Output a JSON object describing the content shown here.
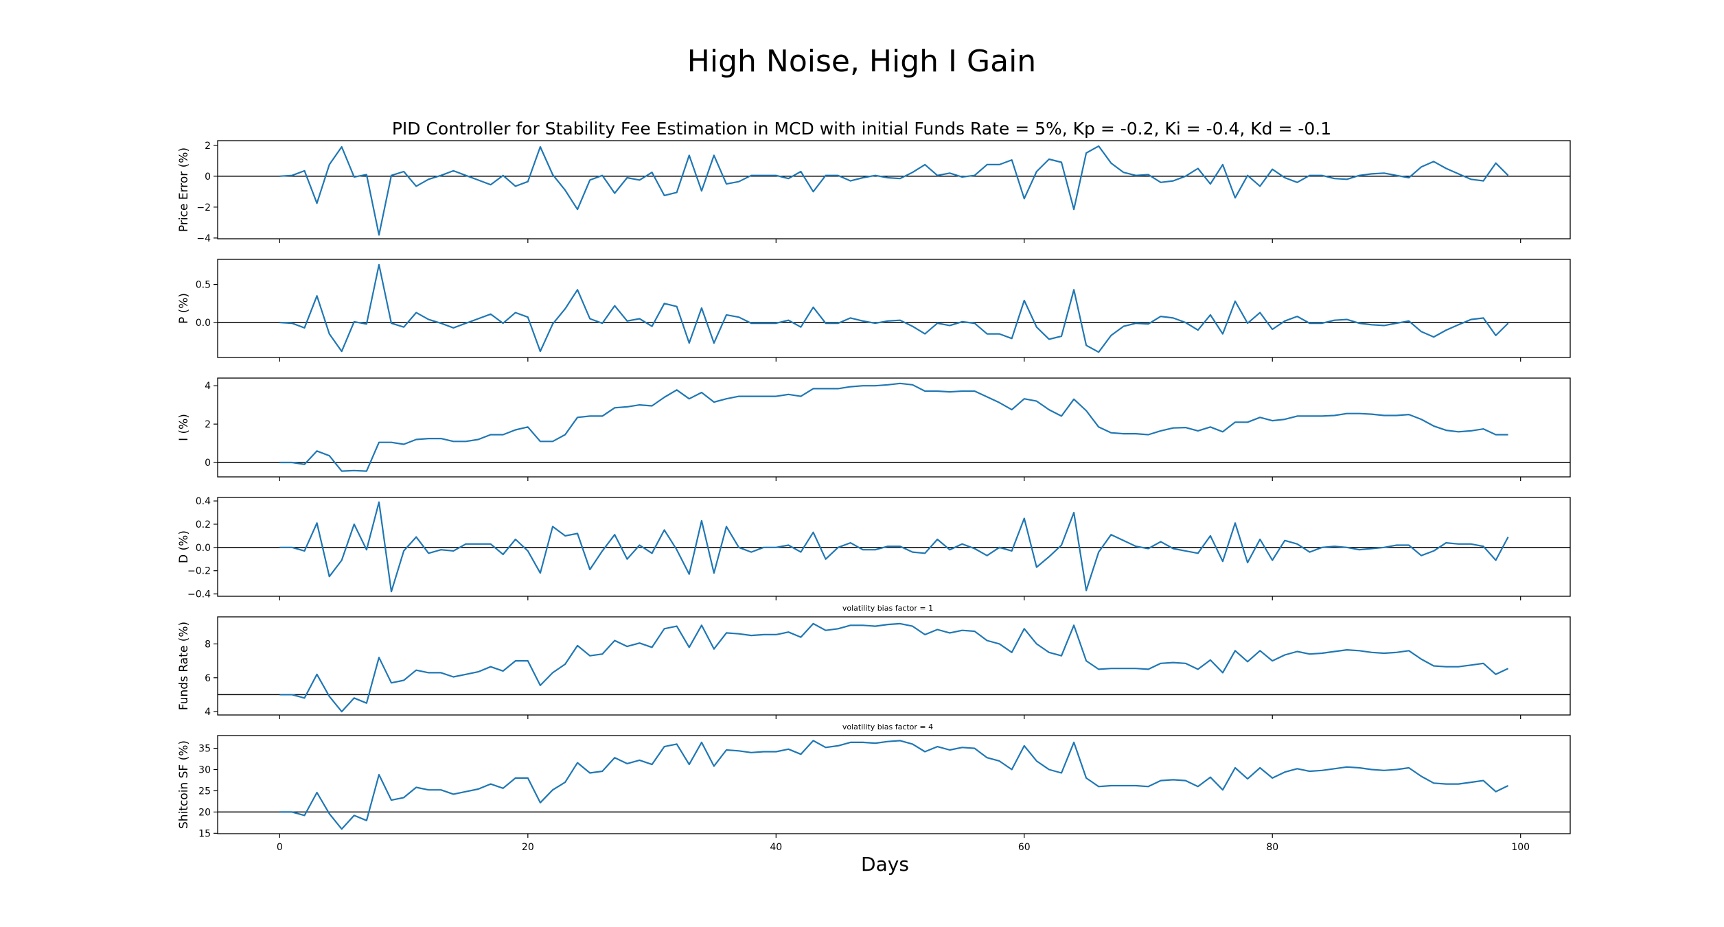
{
  "suptitle": "High Noise, High I Gain",
  "chart_data": {
    "type": "line",
    "title": "PID Controller for Stability Fee Estimation in MCD with initial Funds Rate = 5%, Kp = -0.2, Ki = -0.4, Kd = -0.1",
    "xlabel": "Days",
    "xlim": [
      -5,
      104
    ],
    "xticks": [
      0,
      20,
      40,
      60,
      80,
      100
    ],
    "x": [
      0,
      1,
      2,
      3,
      4,
      5,
      6,
      7,
      8,
      9,
      10,
      11,
      12,
      13,
      14,
      15,
      16,
      17,
      18,
      19,
      20,
      21,
      22,
      23,
      24,
      25,
      26,
      27,
      28,
      29,
      30,
      31,
      32,
      33,
      34,
      35,
      36,
      37,
      38,
      39,
      40,
      41,
      42,
      43,
      44,
      45,
      46,
      47,
      48,
      49,
      50,
      51,
      52,
      53,
      54,
      55,
      56,
      57,
      58,
      59,
      60,
      61,
      62,
      63,
      64,
      65,
      66,
      67,
      68,
      69,
      70,
      71,
      72,
      73,
      74,
      75,
      76,
      77,
      78,
      79,
      80,
      81,
      82,
      83,
      84,
      85,
      86,
      87,
      88,
      89,
      90,
      91,
      92,
      93,
      94,
      95,
      96,
      97,
      98,
      99
    ],
    "subplots": [
      {
        "ylabel": "Price Error (%)",
        "annotation": "",
        "ylim": [
          -4.05,
          2.3
        ],
        "yticks": [
          2,
          0,
          -2,
          -4
        ],
        "ref_y": 0,
        "values": [
          0,
          0.05,
          0.35,
          -1.75,
          0.75,
          1.9,
          -0.05,
          0.1,
          -3.8,
          0.05,
          0.3,
          -0.65,
          -0.2,
          0.05,
          0.35,
          0.05,
          -0.25,
          -0.55,
          0.05,
          -0.65,
          -0.35,
          1.9,
          0.1,
          -0.9,
          -2.15,
          -0.25,
          0.05,
          -1.1,
          -0.1,
          -0.25,
          0.25,
          -1.25,
          -1.05,
          1.35,
          -0.95,
          1.35,
          -0.5,
          -0.35,
          0.05,
          0.05,
          0.05,
          -0.15,
          0.3,
          -1.0,
          0.05,
          0.05,
          -0.3,
          -0.1,
          0.05,
          -0.1,
          -0.15,
          0.25,
          0.75,
          0.05,
          0.2,
          -0.05,
          0.05,
          0.75,
          0.75,
          1.05,
          -1.45,
          0.3,
          1.1,
          0.9,
          -2.15,
          1.5,
          1.95,
          0.85,
          0.25,
          0.05,
          0.1,
          -0.4,
          -0.3,
          0.0,
          0.5,
          -0.5,
          0.75,
          -1.4,
          0.05,
          -0.65,
          0.45,
          -0.1,
          -0.4,
          0.05,
          0.05,
          -0.15,
          -0.2,
          0.05,
          0.15,
          0.2,
          0.05,
          -0.1,
          0.6,
          0.95,
          0.5,
          0.15,
          -0.2,
          -0.3,
          0.85,
          0.05
        ]
      },
      {
        "ylabel": "P (%)",
        "annotation": "",
        "ylim": [
          -0.46,
          0.83
        ],
        "yticks": [
          0.5,
          0.0
        ],
        "ytick_labels": [
          "0.5",
          "0.0"
        ],
        "ref_y": 0,
        "values": [
          0,
          -0.01,
          -0.07,
          0.35,
          -0.15,
          -0.38,
          0.01,
          -0.02,
          0.76,
          -0.01,
          -0.06,
          0.13,
          0.04,
          -0.01,
          -0.07,
          -0.01,
          0.05,
          0.11,
          -0.01,
          0.13,
          0.07,
          -0.38,
          -0.02,
          0.18,
          0.43,
          0.05,
          -0.01,
          0.22,
          0.02,
          0.05,
          -0.05,
          0.25,
          0.21,
          -0.27,
          0.19,
          -0.27,
          0.1,
          0.07,
          -0.01,
          -0.01,
          -0.01,
          0.03,
          -0.06,
          0.2,
          -0.01,
          -0.01,
          0.06,
          0.02,
          -0.01,
          0.02,
          0.03,
          -0.05,
          -0.15,
          -0.01,
          -0.04,
          0.01,
          -0.01,
          -0.15,
          -0.15,
          -0.21,
          0.29,
          -0.06,
          -0.22,
          -0.18,
          0.43,
          -0.3,
          -0.39,
          -0.17,
          -0.05,
          -0.01,
          -0.02,
          0.08,
          0.06,
          0.0,
          -0.1,
          0.1,
          -0.15,
          0.28,
          -0.01,
          0.13,
          -0.09,
          0.02,
          0.08,
          -0.01,
          -0.01,
          0.03,
          0.04,
          -0.01,
          -0.03,
          -0.04,
          -0.01,
          0.02,
          -0.12,
          -0.19,
          -0.1,
          -0.03,
          0.04,
          0.06,
          -0.17,
          -0.01
        ]
      },
      {
        "ylabel": "I (%)",
        "annotation": "",
        "ylim": [
          -0.75,
          4.4
        ],
        "yticks": [
          4,
          2,
          0
        ],
        "ref_y": 0,
        "values": [
          0,
          0.0,
          -0.1,
          0.6,
          0.35,
          -0.45,
          -0.42,
          -0.45,
          1.05,
          1.05,
          0.95,
          1.2,
          1.25,
          1.25,
          1.1,
          1.1,
          1.2,
          1.45,
          1.45,
          1.7,
          1.85,
          1.1,
          1.1,
          1.45,
          2.35,
          2.42,
          2.42,
          2.85,
          2.9,
          3.0,
          2.95,
          3.4,
          3.78,
          3.32,
          3.65,
          3.15,
          3.32,
          3.45,
          3.45,
          3.45,
          3.45,
          3.55,
          3.45,
          3.85,
          3.85,
          3.85,
          3.95,
          4.0,
          4.0,
          4.05,
          4.12,
          4.05,
          3.72,
          3.72,
          3.68,
          3.72,
          3.72,
          3.42,
          3.12,
          2.75,
          3.32,
          3.2,
          2.75,
          2.42,
          3.3,
          2.7,
          1.85,
          1.55,
          1.5,
          1.5,
          1.45,
          1.65,
          1.8,
          1.82,
          1.65,
          1.85,
          1.6,
          2.1,
          2.1,
          2.35,
          2.18,
          2.25,
          2.42,
          2.42,
          2.42,
          2.45,
          2.55,
          2.55,
          2.52,
          2.45,
          2.45,
          2.5,
          2.25,
          1.9,
          1.68,
          1.6,
          1.65,
          1.75,
          1.45,
          1.45
        ]
      },
      {
        "ylabel": "D (%)",
        "annotation": "",
        "ylim": [
          -0.42,
          0.43
        ],
        "yticks": [
          0.4,
          0.2,
          0.0,
          -0.2,
          -0.4
        ],
        "ytick_labels": [
          "0.4",
          "0.2",
          "0.0",
          "−0.2",
          "−0.4"
        ],
        "ref_y": 0,
        "values": [
          0,
          0.0,
          -0.03,
          0.21,
          -0.25,
          -0.11,
          0.2,
          -0.02,
          0.39,
          -0.38,
          -0.03,
          0.09,
          -0.05,
          -0.02,
          -0.03,
          0.03,
          0.03,
          0.03,
          -0.06,
          0.07,
          -0.03,
          -0.22,
          0.18,
          0.1,
          0.12,
          -0.19,
          -0.03,
          0.11,
          -0.1,
          0.02,
          -0.05,
          0.15,
          -0.02,
          -0.23,
          0.23,
          -0.22,
          0.18,
          0.0,
          -0.04,
          0.0,
          0.0,
          0.02,
          -0.04,
          0.13,
          -0.1,
          0.0,
          0.04,
          -0.02,
          -0.02,
          0.01,
          0.01,
          -0.04,
          -0.05,
          0.07,
          -0.02,
          0.03,
          -0.01,
          -0.07,
          0.0,
          -0.03,
          0.25,
          -0.17,
          -0.08,
          0.02,
          0.3,
          -0.37,
          -0.04,
          0.11,
          0.06,
          0.01,
          -0.01,
          0.05,
          -0.01,
          -0.03,
          -0.05,
          0.1,
          -0.12,
          0.21,
          -0.13,
          0.07,
          -0.11,
          0.06,
          0.03,
          -0.04,
          0.0,
          0.01,
          0.0,
          -0.02,
          -0.01,
          0.0,
          0.02,
          0.02,
          -0.07,
          -0.03,
          0.04,
          0.03,
          0.03,
          0.01,
          -0.11,
          0.09
        ]
      },
      {
        "ylabel": "Funds Rate (%)",
        "annotation": "volatility bias factor = 1",
        "ylim": [
          3.8,
          9.6
        ],
        "yticks": [
          8,
          6,
          4
        ],
        "ref_y": 5,
        "values": [
          5.0,
          5.0,
          4.8,
          6.2,
          4.9,
          4.0,
          4.8,
          4.5,
          7.2,
          5.7,
          5.85,
          6.45,
          6.3,
          6.3,
          6.05,
          6.2,
          6.35,
          6.65,
          6.4,
          7.0,
          7.0,
          5.55,
          6.3,
          6.8,
          7.9,
          7.3,
          7.4,
          8.2,
          7.85,
          8.05,
          7.8,
          8.9,
          9.05,
          7.8,
          9.1,
          7.7,
          8.65,
          8.6,
          8.5,
          8.55,
          8.55,
          8.7,
          8.4,
          9.2,
          8.8,
          8.9,
          9.1,
          9.1,
          9.05,
          9.15,
          9.2,
          9.05,
          8.55,
          8.85,
          8.65,
          8.8,
          8.75,
          8.2,
          8.0,
          7.5,
          8.9,
          8.0,
          7.5,
          7.3,
          9.1,
          7.0,
          6.5,
          6.55,
          6.55,
          6.55,
          6.5,
          6.85,
          6.9,
          6.85,
          6.5,
          7.05,
          6.3,
          7.6,
          6.95,
          7.6,
          7.0,
          7.35,
          7.55,
          7.4,
          7.45,
          7.55,
          7.65,
          7.6,
          7.5,
          7.45,
          7.5,
          7.6,
          7.1,
          6.7,
          6.65,
          6.65,
          6.75,
          6.85,
          6.2,
          6.55
        ]
      },
      {
        "ylabel": "Shitcoin SF (%)",
        "annotation": "volatility bias factor = 4",
        "ylim": [
          14.9,
          38.0
        ],
        "yticks": [
          35,
          30,
          25,
          20,
          15
        ],
        "ref_y": 20,
        "values": [
          20.0,
          20.0,
          19.2,
          24.6,
          19.6,
          16.0,
          19.2,
          18.0,
          28.8,
          22.8,
          23.4,
          25.8,
          25.2,
          25.2,
          24.2,
          24.8,
          25.4,
          26.6,
          25.6,
          28.0,
          28.0,
          22.2,
          25.2,
          27.0,
          31.6,
          29.2,
          29.6,
          32.8,
          31.4,
          32.2,
          31.2,
          35.4,
          36.0,
          31.2,
          36.4,
          30.8,
          34.6,
          34.4,
          34.0,
          34.2,
          34.2,
          34.8,
          33.6,
          36.8,
          35.2,
          35.6,
          36.4,
          36.4,
          36.2,
          36.6,
          36.8,
          36.0,
          34.2,
          35.4,
          34.6,
          35.2,
          35.0,
          32.8,
          32.0,
          30.0,
          35.6,
          32.0,
          30.0,
          29.2,
          36.4,
          28.0,
          26.0,
          26.2,
          26.2,
          26.2,
          26.0,
          27.4,
          27.6,
          27.4,
          26.0,
          28.2,
          25.2,
          30.4,
          27.8,
          30.4,
          28.0,
          29.4,
          30.2,
          29.6,
          29.8,
          30.2,
          30.6,
          30.4,
          30.0,
          29.8,
          30.0,
          30.4,
          28.4,
          26.8,
          26.6,
          26.6,
          27.0,
          27.4,
          24.8,
          26.2
        ]
      }
    ]
  }
}
